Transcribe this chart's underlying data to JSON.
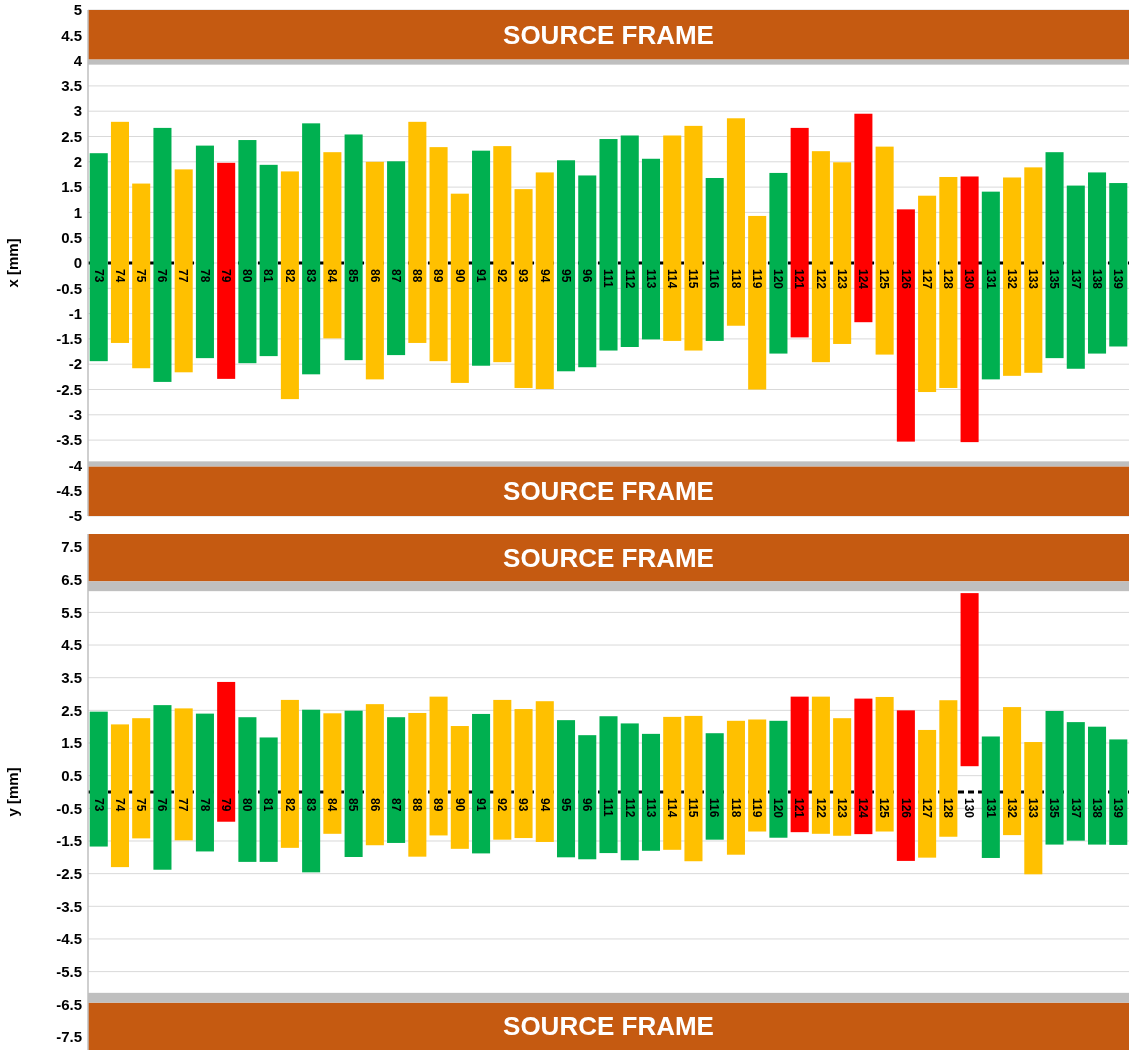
{
  "chart_data": [
    {
      "type": "bar",
      "ylabel": "x [mm]",
      "categories": [
        "73",
        "74",
        "75",
        "76",
        "77",
        "78",
        "79",
        "80",
        "81",
        "82",
        "83",
        "84",
        "85",
        "86",
        "87",
        "88",
        "89",
        "90",
        "91",
        "92",
        "93",
        "94",
        "95",
        "96",
        "111",
        "112",
        "113",
        "114",
        "115",
        "116",
        "118",
        "119",
        "120",
        "121",
        "122",
        "123",
        "124",
        "125",
        "126",
        "127",
        "128",
        "130",
        "131",
        "132",
        "133",
        "135",
        "137",
        "138",
        "139"
      ],
      "base": [
        -1.94,
        -1.58,
        -2.08,
        -2.35,
        -2.16,
        -1.88,
        -2.29,
        -1.98,
        -1.84,
        -2.69,
        -2.2,
        -1.49,
        -1.92,
        -2.3,
        -1.82,
        -1.58,
        -1.94,
        -2.37,
        -2.03,
        -1.96,
        -2.47,
        -2.49,
        -2.14,
        -2.06,
        -1.73,
        -1.66,
        -1.51,
        -1.54,
        -1.73,
        -1.54,
        -1.24,
        -2.5,
        -1.79,
        -1.47,
        -1.96,
        -1.6,
        -1.17,
        -1.81,
        -3.53,
        -2.55,
        -2.47,
        -3.54,
        -2.3,
        -2.23,
        -2.17,
        -1.88,
        -2.09,
        -1.79,
        -1.65
      ],
      "values": [
        4.11,
        4.37,
        3.65,
        5.02,
        4.01,
        4.2,
        4.27,
        4.41,
        3.78,
        4.5,
        4.96,
        3.68,
        4.46,
        4.3,
        3.83,
        4.37,
        4.23,
        3.74,
        4.25,
        4.27,
        3.93,
        4.28,
        4.17,
        3.79,
        4.18,
        4.18,
        3.57,
        4.06,
        4.44,
        3.22,
        4.1,
        3.43,
        3.57,
        4.14,
        4.17,
        3.59,
        4.12,
        4.11,
        4.59,
        3.88,
        4.17,
        5.25,
        3.71,
        3.92,
        4.06,
        4.07,
        3.62,
        3.58,
        3.23
      ],
      "colors": [
        "#00b050",
        "#ffc000",
        "#ffc000",
        "#00b050",
        "#ffc000",
        "#00b050",
        "#ff0000",
        "#00b050",
        "#00b050",
        "#ffc000",
        "#00b050",
        "#ffc000",
        "#00b050",
        "#ffc000",
        "#00b050",
        "#ffc000",
        "#ffc000",
        "#ffc000",
        "#00b050",
        "#ffc000",
        "#ffc000",
        "#ffc000",
        "#00b050",
        "#00b050",
        "#00b050",
        "#00b050",
        "#00b050",
        "#ffc000",
        "#ffc000",
        "#00b050",
        "#ffc000",
        "#ffc000",
        "#00b050",
        "#ff0000",
        "#ffc000",
        "#ffc000",
        "#ff0000",
        "#ffc000",
        "#ff0000",
        "#ffc000",
        "#ffc000",
        "#ff0000",
        "#00b050",
        "#ffc000",
        "#ffc000",
        "#00b050",
        "#00b050",
        "#00b050",
        "#00b050"
      ],
      "ylim": [
        -5,
        5
      ],
      "yticks": [
        -5,
        -4.5,
        -4,
        -3.5,
        -3,
        -2.5,
        -2,
        -1.5,
        -1,
        -0.5,
        0,
        0.5,
        1,
        1.5,
        2,
        2.5,
        3,
        3.5,
        4,
        4.5,
        5
      ],
      "grid": "y",
      "bands": [
        {
          "axis": "y",
          "from": 4.02,
          "to": 5,
          "label": "SOURCE FRAME",
          "color": "#c55a11"
        },
        {
          "axis": "y",
          "from": 3.92,
          "to": 4.02,
          "color": "#bfbfbf"
        },
        {
          "axis": "y",
          "from": -5,
          "to": -4.02,
          "label": "SOURCE FRAME",
          "color": "#c55a11"
        },
        {
          "axis": "y",
          "from": -4.02,
          "to": -3.92,
          "color": "#bfbfbf"
        }
      ],
      "ref_lines": [
        {
          "axis": "y",
          "value": 0,
          "color": "#000000",
          "line_style": "dashed"
        }
      ]
    },
    {
      "type": "bar",
      "ylabel": "y [mm]",
      "categories": [
        "73",
        "74",
        "75",
        "76",
        "77",
        "78",
        "79",
        "80",
        "81",
        "82",
        "83",
        "84",
        "85",
        "86",
        "87",
        "88",
        "89",
        "90",
        "91",
        "92",
        "93",
        "94",
        "95",
        "96",
        "111",
        "112",
        "113",
        "114",
        "115",
        "116",
        "118",
        "119",
        "120",
        "121",
        "122",
        "123",
        "124",
        "125",
        "126",
        "127",
        "128",
        "130",
        "131",
        "132",
        "133",
        "135",
        "137",
        "138",
        "139"
      ],
      "base": [
        -1.67,
        -2.3,
        -1.42,
        -2.38,
        -1.48,
        -1.82,
        -0.91,
        -2.14,
        -2.14,
        -1.71,
        -2.46,
        -1.28,
        -1.99,
        -1.63,
        -1.56,
        -1.98,
        -1.33,
        -1.74,
        -1.88,
        -1.46,
        -1.41,
        -1.53,
        -2.0,
        -2.06,
        -1.87,
        -2.09,
        -1.8,
        -1.77,
        -2.12,
        -1.46,
        -1.92,
        -1.21,
        -1.4,
        -1.23,
        -1.28,
        -1.34,
        -1.29,
        -1.21,
        -2.11,
        -2.01,
        -1.37,
        0.79,
        -2.02,
        -1.32,
        -2.52,
        -1.61,
        -1.49,
        -1.61,
        -1.62
      ],
      "values": [
        4.13,
        4.37,
        3.68,
        5.04,
        4.04,
        4.22,
        4.28,
        4.43,
        3.81,
        4.53,
        4.98,
        3.69,
        4.48,
        4.32,
        3.85,
        4.4,
        4.25,
        3.76,
        4.27,
        4.28,
        3.95,
        4.31,
        4.2,
        3.8,
        4.19,
        4.19,
        3.58,
        4.07,
        4.45,
        3.26,
        4.1,
        3.43,
        3.58,
        4.15,
        4.2,
        3.6,
        4.15,
        4.12,
        4.61,
        3.91,
        4.18,
        5.3,
        3.72,
        3.92,
        4.05,
        4.09,
        3.63,
        3.61,
        3.23
      ],
      "colors": [
        "#00b050",
        "#ffc000",
        "#ffc000",
        "#00b050",
        "#ffc000",
        "#00b050",
        "#ff0000",
        "#00b050",
        "#00b050",
        "#ffc000",
        "#00b050",
        "#ffc000",
        "#00b050",
        "#ffc000",
        "#00b050",
        "#ffc000",
        "#ffc000",
        "#ffc000",
        "#00b050",
        "#ffc000",
        "#ffc000",
        "#ffc000",
        "#00b050",
        "#00b050",
        "#00b050",
        "#00b050",
        "#00b050",
        "#ffc000",
        "#ffc000",
        "#00b050",
        "#ffc000",
        "#ffc000",
        "#00b050",
        "#ff0000",
        "#ffc000",
        "#ffc000",
        "#ff0000",
        "#ffc000",
        "#ff0000",
        "#ffc000",
        "#ffc000",
        "#ff0000",
        "#00b050",
        "#ffc000",
        "#ffc000",
        "#00b050",
        "#00b050",
        "#00b050",
        "#00b050"
      ],
      "ylim": [
        -7.9,
        7.9
      ],
      "yticks": [
        -7.5,
        -6.5,
        -5.5,
        -4.5,
        -3.5,
        -2.5,
        -1.5,
        -0.5,
        0.5,
        1.5,
        2.5,
        3.5,
        4.5,
        5.5,
        6.5,
        7.5
      ],
      "grid": "y",
      "bands": [
        {
          "axis": "y",
          "from": 6.45,
          "to": 7.9,
          "label": "SOURCE FRAME",
          "color": "#c55a11"
        },
        {
          "axis": "y",
          "from": 6.15,
          "to": 6.45,
          "color": "#bfbfbf"
        },
        {
          "axis": "y",
          "from": -7.9,
          "to": -6.45,
          "label": "SOURCE FRAME",
          "color": "#c55a11"
        },
        {
          "axis": "y",
          "from": -6.45,
          "to": -6.15,
          "color": "#bfbfbf"
        }
      ],
      "ref_lines": [
        {
          "axis": "y",
          "value": 0,
          "color": "#000000",
          "line_style": "dashed"
        }
      ]
    }
  ]
}
